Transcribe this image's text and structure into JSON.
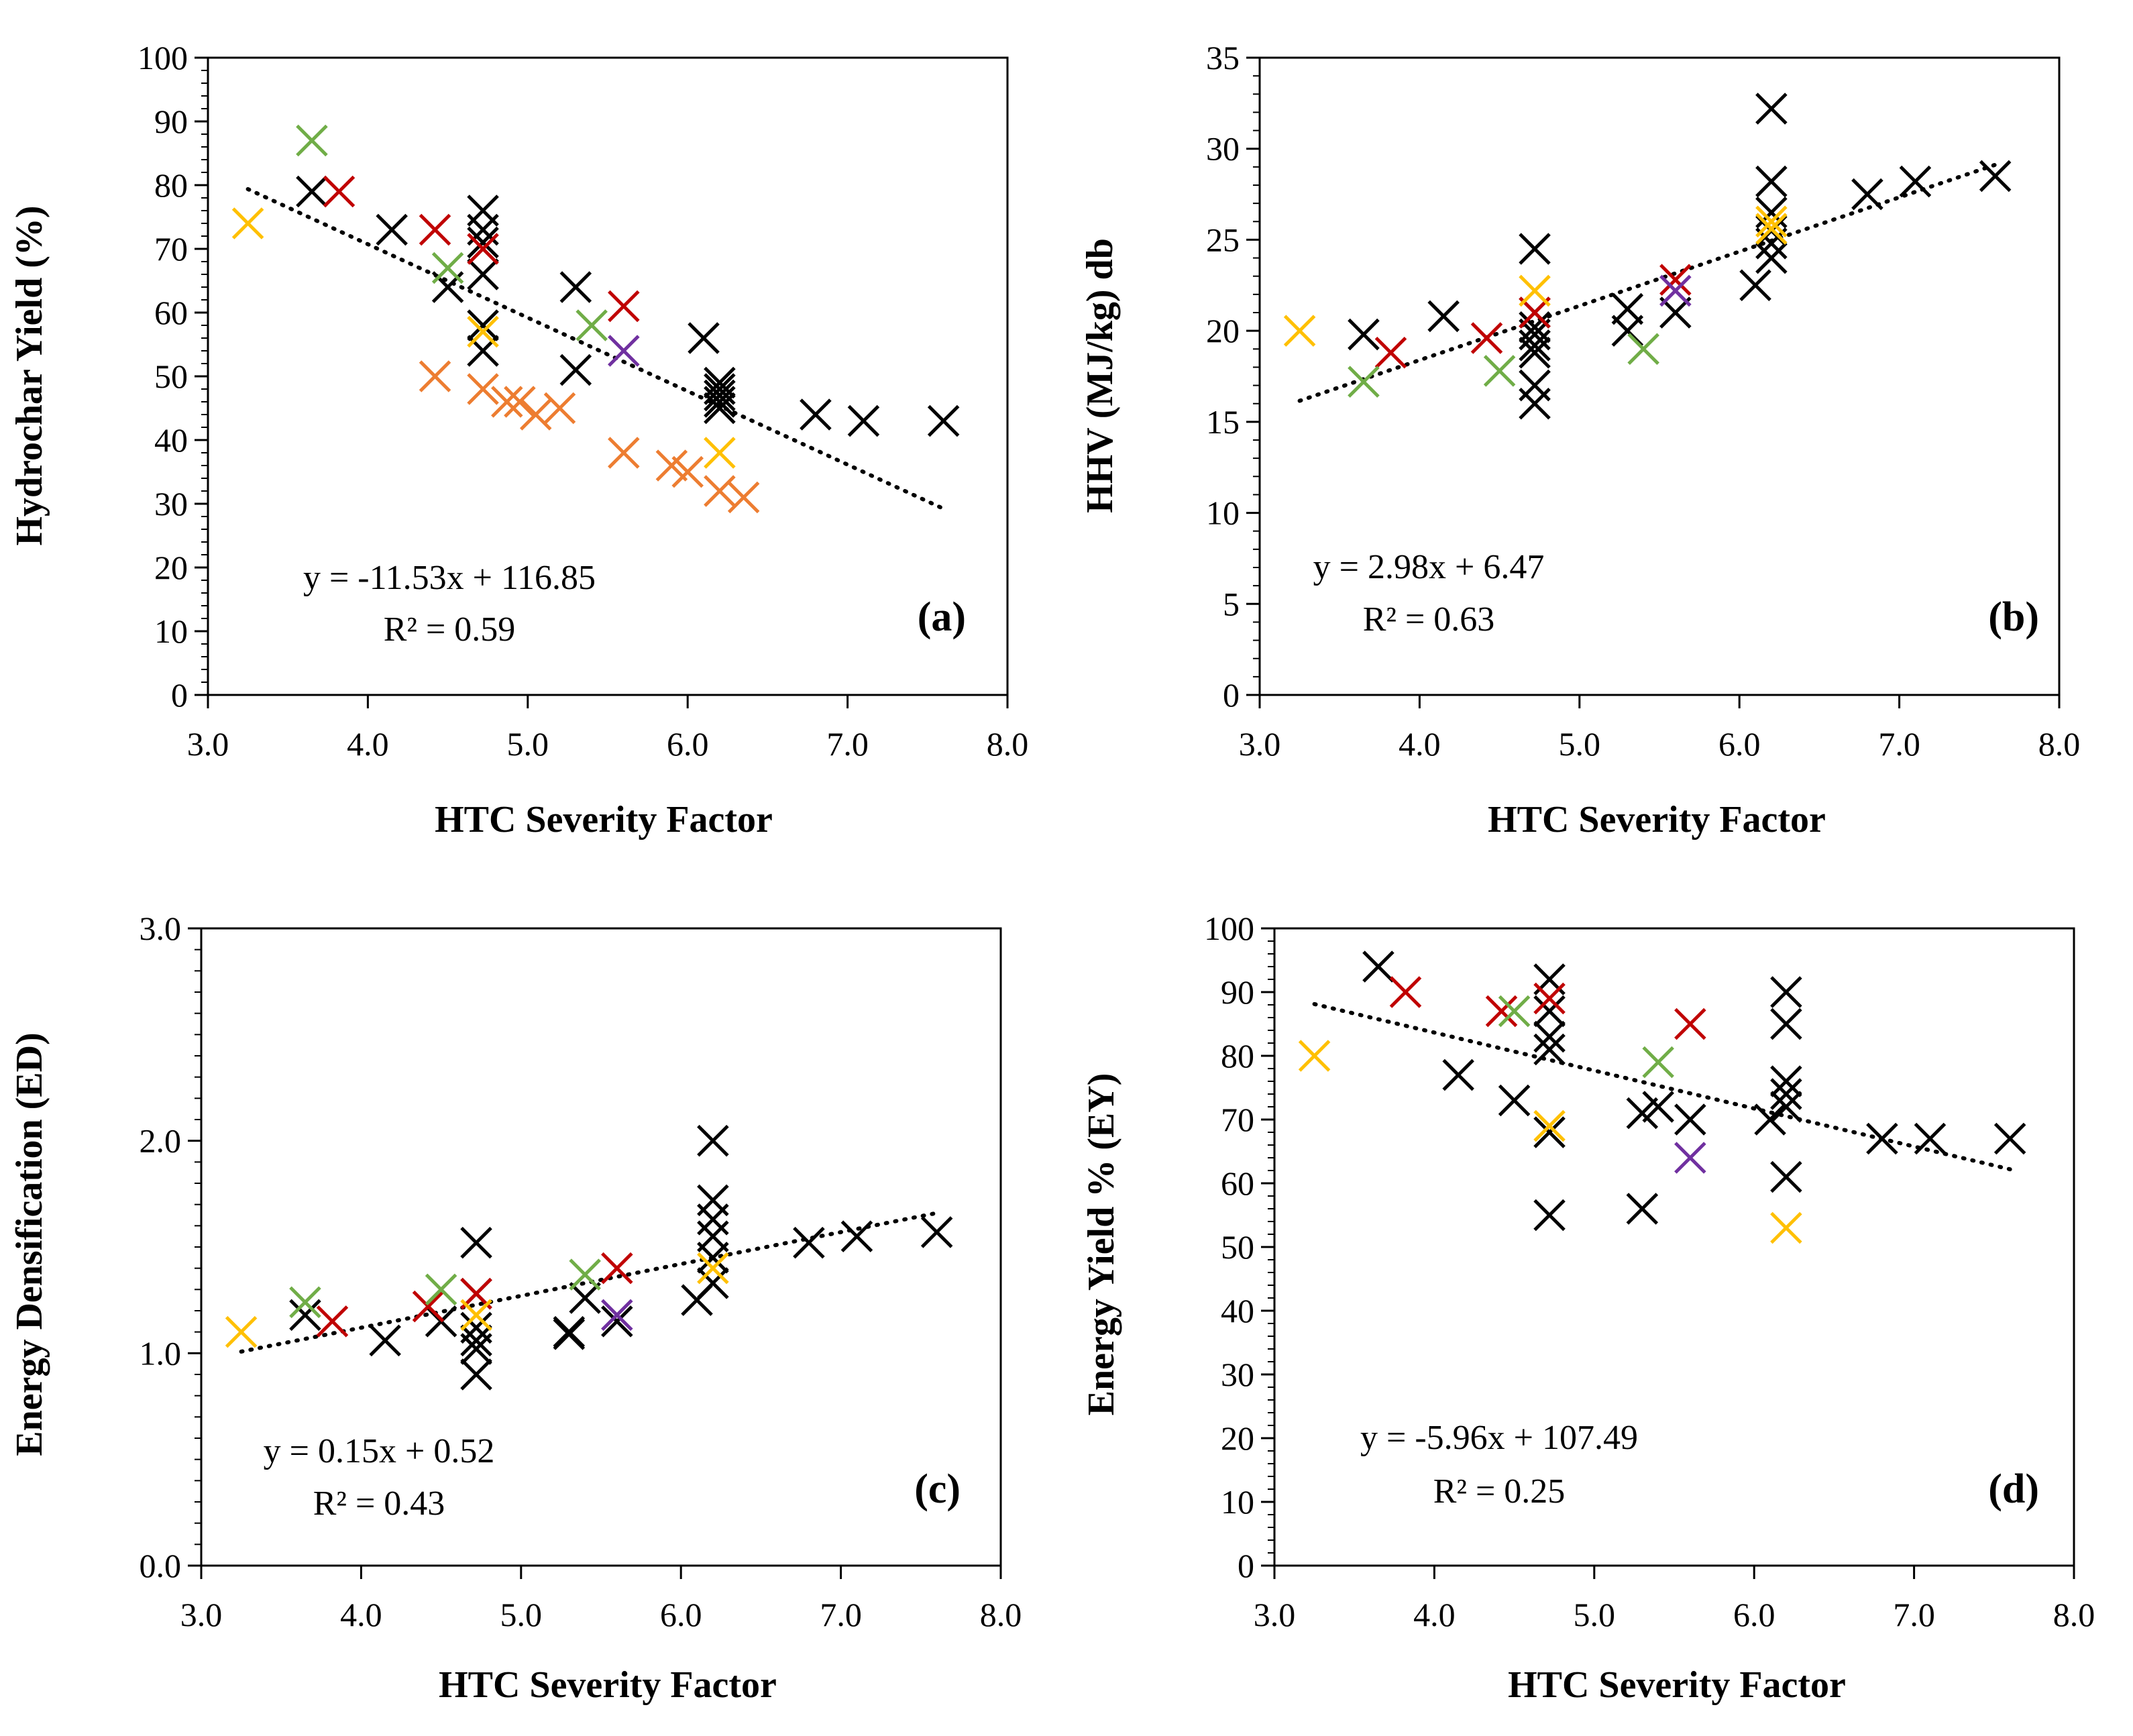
{
  "palette": {
    "black": "#000000",
    "red": "#c00000",
    "green": "#70ad47",
    "orange": "#ed7d31",
    "yellow": "#ffc000",
    "purple": "#7030a0"
  },
  "chart_data": [
    {
      "type": "scatter",
      "panel_label": "(a)",
      "xlabel": "HTC Severity Factor",
      "ylabel": "Hydrochar Yield (%)",
      "xlim": [
        3.0,
        8.0
      ],
      "ylim": [
        0,
        100
      ],
      "x_ticks": [
        "3.0",
        "4.0",
        "5.0",
        "6.0",
        "7.0",
        "8.0"
      ],
      "y_ticks": [
        "0",
        "10",
        "20",
        "30",
        "40",
        "50",
        "60",
        "70",
        "80",
        "90",
        "100"
      ],
      "x_tick_values": [
        3,
        4,
        5,
        6,
        7,
        8
      ],
      "y_tick_values": [
        0,
        10,
        20,
        30,
        40,
        50,
        60,
        70,
        80,
        90,
        100
      ],
      "y_minor_step": 2,
      "trendline": {
        "slope": -11.53,
        "intercept": 116.85,
        "x_range": [
          3.25,
          7.6
        ],
        "style": "dotted"
      },
      "equation": "y = -11.53x + 116.85",
      "r_squared": "R² = 0.59",
      "series": [
        {
          "name": "black",
          "color": "black",
          "points": [
            [
              3.65,
              79
            ],
            [
              4.15,
              73
            ],
            [
              4.5,
              64
            ],
            [
              4.72,
              76
            ],
            [
              4.72,
              73
            ],
            [
              4.72,
              71
            ],
            [
              4.72,
              66
            ],
            [
              4.72,
              58
            ],
            [
              4.72,
              54
            ],
            [
              5.3,
              64
            ],
            [
              5.3,
              51
            ],
            [
              6.1,
              56
            ],
            [
              6.2,
              49
            ],
            [
              6.2,
              48
            ],
            [
              6.2,
              47
            ],
            [
              6.2,
              46
            ],
            [
              6.2,
              45
            ],
            [
              6.8,
              44
            ],
            [
              7.1,
              43
            ],
            [
              7.6,
              43
            ]
          ]
        },
        {
          "name": "red",
          "color": "red",
          "points": [
            [
              3.82,
              79
            ],
            [
              4.42,
              73
            ],
            [
              4.72,
              70
            ],
            [
              5.6,
              61
            ]
          ]
        },
        {
          "name": "green",
          "color": "green",
          "points": [
            [
              3.65,
              87
            ],
            [
              4.5,
              67
            ],
            [
              5.4,
              58
            ]
          ]
        },
        {
          "name": "orange",
          "color": "orange",
          "points": [
            [
              4.42,
              50
            ],
            [
              4.72,
              48
            ],
            [
              4.87,
              46
            ],
            [
              4.95,
              46
            ],
            [
              5.05,
              44
            ],
            [
              5.2,
              45
            ],
            [
              5.6,
              38
            ],
            [
              5.9,
              36
            ],
            [
              6.0,
              35
            ],
            [
              6.2,
              32
            ],
            [
              6.35,
              31
            ]
          ]
        },
        {
          "name": "yellow",
          "color": "yellow",
          "points": [
            [
              3.25,
              74
            ],
            [
              4.72,
              57
            ],
            [
              6.2,
              38
            ]
          ]
        },
        {
          "name": "purple",
          "color": "purple",
          "points": [
            [
              5.6,
              54
            ]
          ]
        }
      ]
    },
    {
      "type": "scatter",
      "panel_label": "(b)",
      "xlabel": "HTC Severity Factor",
      "ylabel": "HHV (MJ/kg) db",
      "xlim": [
        3.0,
        8.0
      ],
      "ylim": [
        0,
        35
      ],
      "x_ticks": [
        "3.0",
        "4.0",
        "5.0",
        "6.0",
        "7.0",
        "8.0"
      ],
      "y_ticks": [
        "0",
        "5",
        "10",
        "15",
        "20",
        "25",
        "30",
        "35"
      ],
      "x_tick_values": [
        3,
        4,
        5,
        6,
        7,
        8
      ],
      "y_tick_values": [
        0,
        5,
        10,
        15,
        20,
        25,
        30,
        35
      ],
      "y_minor_step": 1,
      "trendline": {
        "slope": 2.98,
        "intercept": 6.47,
        "x_range": [
          3.25,
          7.6
        ],
        "style": "dotted"
      },
      "equation": "y = 2.98x + 6.47",
      "r_squared": "R² = 0.63",
      "series": [
        {
          "name": "black",
          "color": "black",
          "points": [
            [
              3.65,
              19.8
            ],
            [
              4.15,
              20.8
            ],
            [
              4.72,
              24.5
            ],
            [
              4.72,
              21
            ],
            [
              4.72,
              20.2
            ],
            [
              4.72,
              19.8
            ],
            [
              4.72,
              19.2
            ],
            [
              4.72,
              18.8
            ],
            [
              4.72,
              17
            ],
            [
              4.72,
              16
            ],
            [
              5.3,
              21.2
            ],
            [
              5.3,
              20
            ],
            [
              5.6,
              21
            ],
            [
              6.1,
              22.5
            ],
            [
              6.2,
              32.2
            ],
            [
              6.2,
              28.2
            ],
            [
              6.2,
              26.5
            ],
            [
              6.2,
              25.5
            ],
            [
              6.2,
              24.8
            ],
            [
              6.2,
              24
            ],
            [
              6.8,
              27.5
            ],
            [
              7.1,
              28.2
            ],
            [
              7.6,
              28.5
            ]
          ]
        },
        {
          "name": "red",
          "color": "red",
          "points": [
            [
              3.82,
              18.8
            ],
            [
              4.42,
              19.6
            ],
            [
              4.72,
              21
            ],
            [
              5.6,
              22.8
            ]
          ]
        },
        {
          "name": "green",
          "color": "green",
          "points": [
            [
              3.65,
              17.2
            ],
            [
              4.5,
              17.8
            ],
            [
              5.4,
              19
            ]
          ]
        },
        {
          "name": "yellow",
          "color": "yellow",
          "points": [
            [
              3.25,
              20
            ],
            [
              4.72,
              22.2
            ],
            [
              6.2,
              26
            ],
            [
              6.2,
              25.6
            ]
          ]
        },
        {
          "name": "purple",
          "color": "purple",
          "points": [
            [
              5.6,
              22.2
            ]
          ]
        }
      ]
    },
    {
      "type": "scatter",
      "panel_label": "(c)",
      "xlabel": "HTC Severity Factor",
      "ylabel": "Energy Densification (ED)",
      "xlim": [
        3.0,
        8.0
      ],
      "ylim": [
        0.0,
        3.0
      ],
      "x_ticks": [
        "3.0",
        "4.0",
        "5.0",
        "6.0",
        "7.0",
        "8.0"
      ],
      "y_ticks": [
        "0.0",
        "1.0",
        "2.0",
        "3.0"
      ],
      "x_tick_values": [
        3,
        4,
        5,
        6,
        7,
        8
      ],
      "y_tick_values": [
        0,
        1,
        2,
        3
      ],
      "y_minor_step": 0.1,
      "trendline": {
        "slope": 0.15,
        "intercept": 0.52,
        "x_range": [
          3.25,
          7.6
        ],
        "style": "dotted"
      },
      "equation": "y = 0.15x + 0.52",
      "r_squared": "R² = 0.43",
      "series": [
        {
          "name": "black",
          "color": "black",
          "points": [
            [
              3.65,
              1.18
            ],
            [
              4.15,
              1.06
            ],
            [
              4.5,
              1.15
            ],
            [
              4.72,
              1.52
            ],
            [
              4.72,
              1.28
            ],
            [
              4.72,
              1.12
            ],
            [
              4.72,
              1.06
            ],
            [
              4.72,
              1.02
            ],
            [
              4.72,
              0.9
            ],
            [
              5.3,
              1.1
            ],
            [
              5.3,
              1.09
            ],
            [
              5.4,
              1.26
            ],
            [
              5.6,
              1.15
            ],
            [
              6.1,
              1.25
            ],
            [
              6.2,
              2.0
            ],
            [
              6.2,
              1.72
            ],
            [
              6.2,
              1.63
            ],
            [
              6.2,
              1.55
            ],
            [
              6.2,
              1.45
            ],
            [
              6.2,
              1.33
            ],
            [
              6.8,
              1.52
            ],
            [
              7.1,
              1.55
            ],
            [
              7.6,
              1.57
            ]
          ]
        },
        {
          "name": "red",
          "color": "red",
          "points": [
            [
              3.82,
              1.15
            ],
            [
              4.42,
              1.22
            ],
            [
              4.72,
              1.28
            ],
            [
              5.6,
              1.4
            ]
          ]
        },
        {
          "name": "green",
          "color": "green",
          "points": [
            [
              3.65,
              1.24
            ],
            [
              4.5,
              1.3
            ],
            [
              5.4,
              1.37
            ]
          ]
        },
        {
          "name": "yellow",
          "color": "yellow",
          "points": [
            [
              3.25,
              1.1
            ],
            [
              4.72,
              1.18
            ],
            [
              6.2,
              1.4
            ]
          ]
        },
        {
          "name": "purple",
          "color": "purple",
          "points": [
            [
              5.6,
              1.18
            ]
          ]
        }
      ]
    },
    {
      "type": "scatter",
      "panel_label": "(d)",
      "xlabel": "HTC Severity Factor",
      "ylabel": "Energy Yield % (EY)",
      "xlim": [
        3.0,
        8.0
      ],
      "ylim": [
        0,
        100
      ],
      "x_ticks": [
        "3.0",
        "4.0",
        "5.0",
        "6.0",
        "7.0",
        "8.0"
      ],
      "y_ticks": [
        "0",
        "10",
        "20",
        "30",
        "40",
        "50",
        "60",
        "70",
        "80",
        "90",
        "100"
      ],
      "x_tick_values": [
        3,
        4,
        5,
        6,
        7,
        8
      ],
      "y_tick_values": [
        0,
        10,
        20,
        30,
        40,
        50,
        60,
        70,
        80,
        90,
        100
      ],
      "y_minor_step": 2,
      "trendline": {
        "slope": -5.96,
        "intercept": 107.49,
        "x_range": [
          3.25,
          7.6
        ],
        "style": "dotted"
      },
      "equation": "y = -5.96x + 107.49",
      "r_squared": "R² = 0.25",
      "series": [
        {
          "name": "black",
          "color": "black",
          "points": [
            [
              3.65,
              94
            ],
            [
              4.15,
              77
            ],
            [
              4.5,
              73
            ],
            [
              4.72,
              92
            ],
            [
              4.72,
              87
            ],
            [
              4.72,
              83
            ],
            [
              4.72,
              81
            ],
            [
              4.72,
              68
            ],
            [
              4.72,
              55
            ],
            [
              5.3,
              71
            ],
            [
              5.3,
              56
            ],
            [
              5.4,
              72
            ],
            [
              5.6,
              70
            ],
            [
              6.1,
              70
            ],
            [
              6.2,
              90
            ],
            [
              6.2,
              85
            ],
            [
              6.2,
              76
            ],
            [
              6.2,
              74
            ],
            [
              6.2,
              72
            ],
            [
              6.2,
              61
            ],
            [
              6.8,
              67
            ],
            [
              7.1,
              67
            ],
            [
              7.6,
              67
            ]
          ]
        },
        {
          "name": "red",
          "color": "red",
          "points": [
            [
              3.82,
              90
            ],
            [
              4.42,
              87
            ],
            [
              4.72,
              89
            ],
            [
              5.6,
              85
            ]
          ]
        },
        {
          "name": "green",
          "color": "green",
          "points": [
            [
              4.5,
              87
            ],
            [
              5.4,
              79
            ]
          ]
        },
        {
          "name": "yellow",
          "color": "yellow",
          "points": [
            [
              3.25,
              80
            ],
            [
              4.72,
              69
            ],
            [
              6.2,
              53
            ]
          ]
        },
        {
          "name": "purple",
          "color": "purple",
          "points": [
            [
              5.6,
              64
            ]
          ]
        }
      ]
    }
  ]
}
